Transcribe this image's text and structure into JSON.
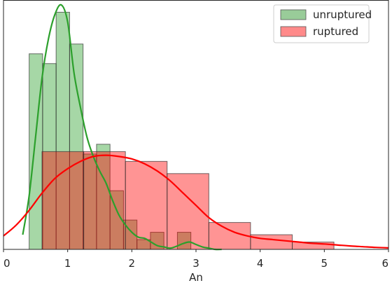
{
  "chart_data": {
    "type": "bar",
    "xlabel": "An",
    "ylabel": "",
    "xlim": [
      0,
      6
    ],
    "ylim": [
      0,
      1.02
    ],
    "x_ticks": [
      "0",
      "1",
      "2",
      "3",
      "4",
      "5",
      "6"
    ],
    "grid": false,
    "legend_position": "top-right",
    "series": [
      {
        "name": "unruptured",
        "kind": "histogram",
        "color": "#2ca02c",
        "fill": "#99cc99",
        "bin_edges": [
          0.4,
          0.61,
          0.82,
          1.03,
          1.24,
          1.45,
          1.66,
          1.87,
          2.08,
          2.29,
          2.5,
          2.71,
          2.92
        ],
        "density": [
          0.8,
          0.76,
          0.97,
          0.84,
          0.39,
          0.43,
          0.24,
          0.12,
          0.04,
          0.07,
          0.0,
          0.07
        ],
        "kde_x": [
          0.3,
          0.4,
          0.5,
          0.6,
          0.7,
          0.8,
          0.9,
          1.0,
          1.1,
          1.2,
          1.3,
          1.4,
          1.5,
          1.6,
          1.7,
          1.8,
          1.9,
          2.0,
          2.1,
          2.2,
          2.3,
          2.4,
          2.5,
          2.6,
          2.7,
          2.8,
          2.9,
          3.0,
          3.1,
          3.2,
          3.3,
          3.4
        ],
        "kde_y": [
          0.06,
          0.22,
          0.46,
          0.7,
          0.86,
          0.96,
          1.0,
          0.93,
          0.72,
          0.58,
          0.46,
          0.38,
          0.32,
          0.27,
          0.2,
          0.14,
          0.1,
          0.07,
          0.05,
          0.045,
          0.03,
          0.015,
          0.01,
          0.005,
          0.013,
          0.024,
          0.03,
          0.02,
          0.01,
          0.005,
          0.0,
          0.0
        ]
      },
      {
        "name": "ruptured",
        "kind": "histogram",
        "color": "#ff0000",
        "fill": "#ff8a8a",
        "bin_edges": [
          0.6,
          1.25,
          1.9,
          2.55,
          3.2,
          3.85,
          4.5,
          5.15
        ],
        "density": [
          0.4,
          0.4,
          0.36,
          0.31,
          0.11,
          0.06,
          0.03
        ],
        "kde_x": [
          0.0,
          0.2,
          0.4,
          0.6,
          0.8,
          1.0,
          1.2,
          1.4,
          1.6,
          1.8,
          2.0,
          2.2,
          2.4,
          2.6,
          2.8,
          3.0,
          3.2,
          3.4,
          3.6,
          3.8,
          4.0,
          4.2,
          4.4,
          4.6,
          4.8,
          5.0,
          5.2,
          5.4,
          5.6,
          5.8,
          6.0
        ],
        "kde_y": [
          0.055,
          0.1,
          0.16,
          0.23,
          0.29,
          0.33,
          0.36,
          0.38,
          0.385,
          0.38,
          0.37,
          0.35,
          0.32,
          0.28,
          0.23,
          0.18,
          0.13,
          0.095,
          0.07,
          0.055,
          0.045,
          0.04,
          0.035,
          0.03,
          0.025,
          0.022,
          0.018,
          0.014,
          0.011,
          0.008,
          0.006
        ]
      }
    ]
  }
}
